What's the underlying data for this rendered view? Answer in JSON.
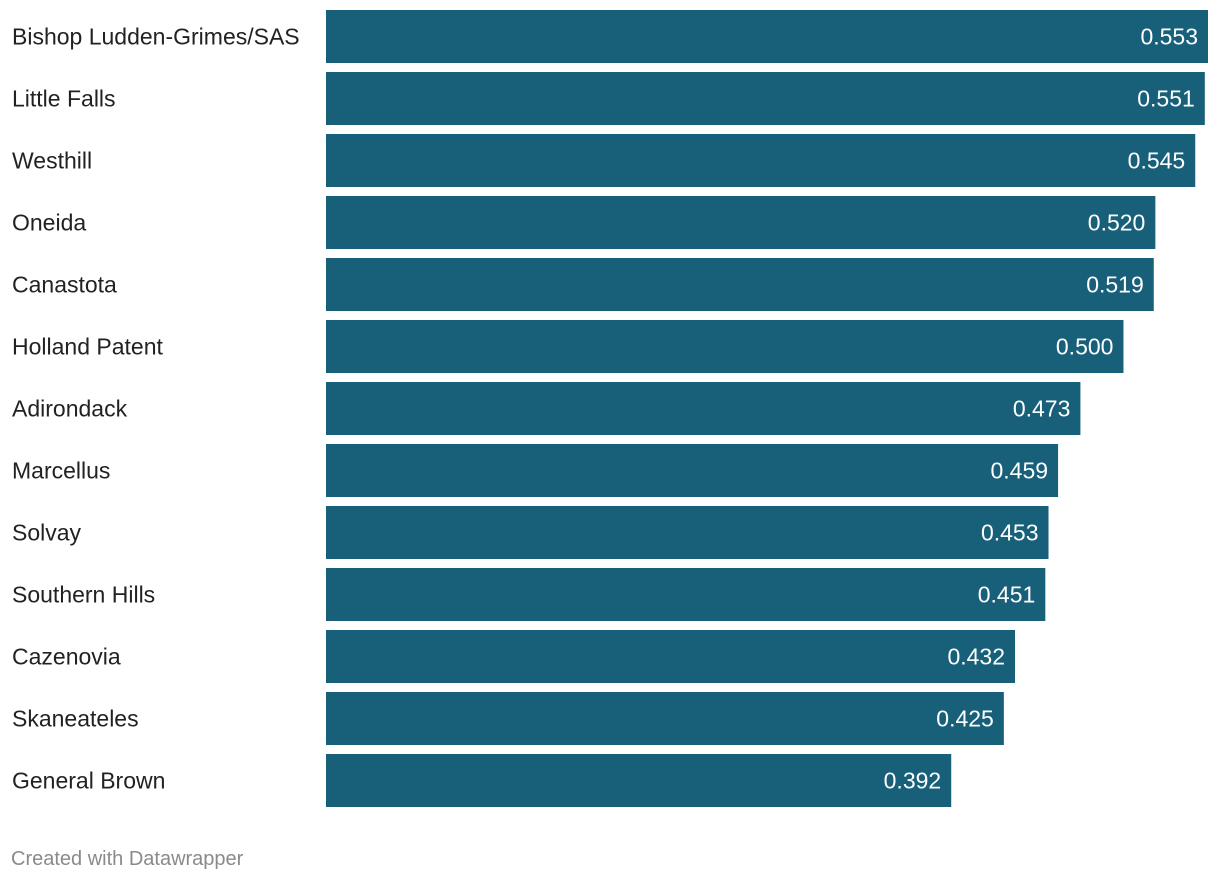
{
  "chart_data": {
    "type": "bar",
    "orientation": "horizontal",
    "title": "",
    "xlabel": "",
    "ylabel": "",
    "categories": [
      "Bishop Ludden-Grimes/SAS",
      "Little Falls",
      "Westhill",
      "Oneida",
      "Canastota",
      "Holland Patent",
      "Adirondack",
      "Marcellus",
      "Solvay",
      "Southern Hills",
      "Cazenovia",
      "Skaneateles",
      "General Brown"
    ],
    "values": [
      0.553,
      0.551,
      0.545,
      0.52,
      0.519,
      0.5,
      0.473,
      0.459,
      0.453,
      0.451,
      0.432,
      0.425,
      0.392
    ],
    "value_labels": [
      "0.553",
      "0.551",
      "0.545",
      "0.520",
      "0.519",
      "0.500",
      "0.473",
      "0.459",
      "0.453",
      "0.451",
      "0.432",
      "0.425",
      "0.392"
    ],
    "xlim": [
      0,
      0.553
    ],
    "grid": false,
    "legend": "none",
    "bar_color": "#186079"
  },
  "footer": {
    "credit": "Created with Datawrapper"
  }
}
